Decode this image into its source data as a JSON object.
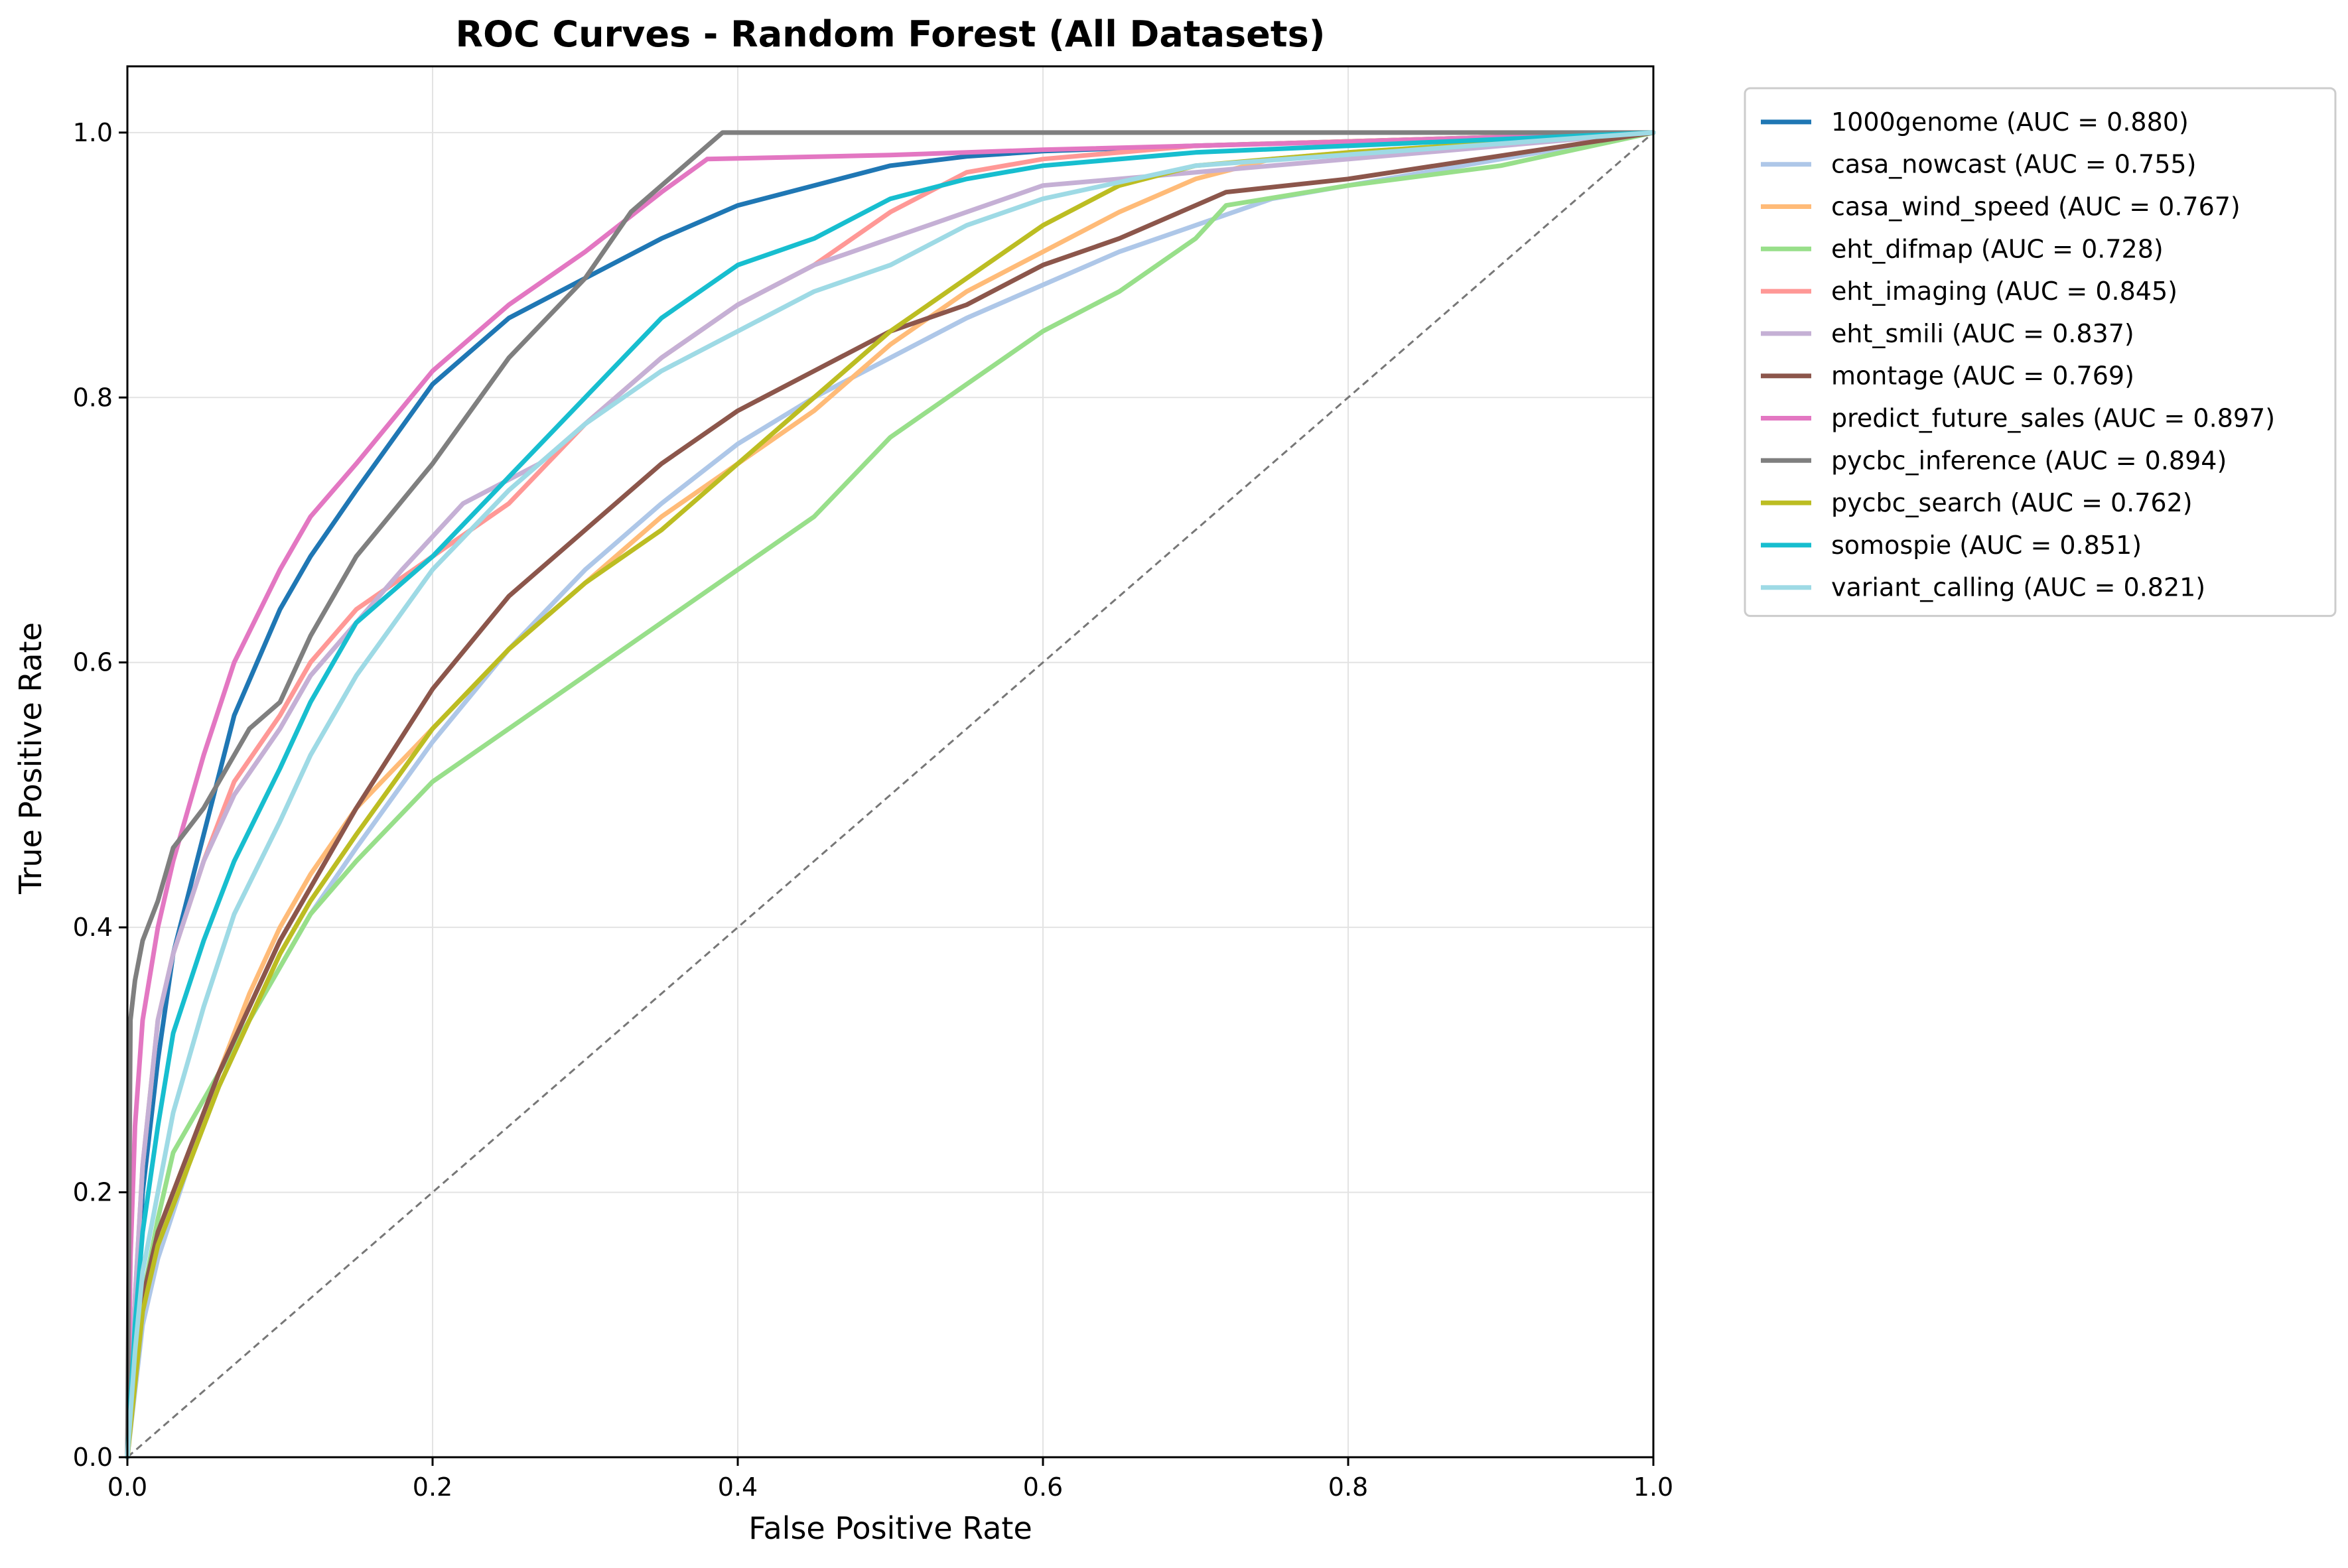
{
  "chart_data": {
    "type": "line",
    "title": "ROC Curves - Random Forest (All Datasets)",
    "xlabel": "False Positive Rate",
    "ylabel": "True Positive Rate",
    "xlim": [
      0,
      1
    ],
    "ylim": [
      0,
      1.05
    ],
    "xticks": [
      0.0,
      0.2,
      0.4,
      0.6,
      0.8,
      1.0
    ],
    "xtick_labels": [
      "0.0",
      "0.2",
      "0.4",
      "0.6",
      "0.8",
      "1.0"
    ],
    "yticks": [
      0.0,
      0.2,
      0.4,
      0.6,
      0.8,
      1.0
    ],
    "ytick_labels": [
      "0.0",
      "0.2",
      "0.4",
      "0.6",
      "0.8",
      "1.0"
    ],
    "grid": true,
    "legend_position": "outside-right-top",
    "reference_line": {
      "x": [
        0,
        1
      ],
      "y": [
        0,
        1
      ],
      "color": "#777777",
      "style": "dashed"
    },
    "series": [
      {
        "name": "1000genome (AUC = 0.880)",
        "color": "#1f77b4",
        "x": [
          0,
          0.005,
          0.01,
          0.02,
          0.03,
          0.05,
          0.07,
          0.1,
          0.12,
          0.15,
          0.2,
          0.25,
          0.3,
          0.35,
          0.4,
          0.45,
          0.5,
          0.55,
          0.6,
          0.7,
          1.0
        ],
        "y": [
          0,
          0.1,
          0.2,
          0.3,
          0.38,
          0.47,
          0.56,
          0.64,
          0.68,
          0.73,
          0.81,
          0.86,
          0.89,
          0.92,
          0.945,
          0.96,
          0.975,
          0.982,
          0.986,
          0.99,
          1.0
        ]
      },
      {
        "name": "casa_nowcast (AUC = 0.755)",
        "color": "#aec7e8",
        "x": [
          0,
          0.01,
          0.02,
          0.04,
          0.06,
          0.08,
          0.1,
          0.12,
          0.15,
          0.2,
          0.25,
          0.3,
          0.35,
          0.4,
          0.45,
          0.5,
          0.55,
          0.6,
          0.65,
          0.7,
          0.75,
          0.8,
          1.0
        ],
        "y": [
          0,
          0.1,
          0.15,
          0.22,
          0.28,
          0.33,
          0.37,
          0.41,
          0.46,
          0.54,
          0.61,
          0.67,
          0.72,
          0.765,
          0.8,
          0.83,
          0.86,
          0.885,
          0.91,
          0.93,
          0.95,
          0.96,
          1.0
        ]
      },
      {
        "name": "casa_wind_speed (AUC = 0.767)",
        "color": "#ffbb78",
        "x": [
          0,
          0.01,
          0.02,
          0.04,
          0.06,
          0.08,
          0.1,
          0.12,
          0.15,
          0.2,
          0.25,
          0.3,
          0.35,
          0.4,
          0.45,
          0.5,
          0.55,
          0.6,
          0.65,
          0.7,
          0.75,
          0.8,
          1.0
        ],
        "y": [
          0,
          0.12,
          0.17,
          0.23,
          0.29,
          0.35,
          0.4,
          0.44,
          0.49,
          0.55,
          0.61,
          0.66,
          0.71,
          0.75,
          0.79,
          0.84,
          0.88,
          0.91,
          0.94,
          0.965,
          0.98,
          0.985,
          1.0
        ]
      },
      {
        "name": "eht_difmap (AUC = 0.728)",
        "color": "#98df8a",
        "x": [
          0,
          0.01,
          0.02,
          0.03,
          0.05,
          0.07,
          0.1,
          0.12,
          0.15,
          0.2,
          0.25,
          0.3,
          0.35,
          0.4,
          0.45,
          0.5,
          0.55,
          0.6,
          0.65,
          0.7,
          0.72,
          0.8,
          0.9,
          1.0
        ],
        "y": [
          0,
          0.12,
          0.18,
          0.23,
          0.27,
          0.31,
          0.37,
          0.41,
          0.45,
          0.51,
          0.55,
          0.59,
          0.63,
          0.67,
          0.71,
          0.77,
          0.81,
          0.85,
          0.88,
          0.92,
          0.945,
          0.96,
          0.975,
          1.0
        ]
      },
      {
        "name": "eht_imaging (AUC = 0.845)",
        "color": "#ff9896",
        "x": [
          0,
          0.005,
          0.01,
          0.02,
          0.03,
          0.05,
          0.07,
          0.1,
          0.12,
          0.15,
          0.2,
          0.25,
          0.3,
          0.35,
          0.4,
          0.45,
          0.5,
          0.55,
          0.6,
          0.7,
          1.0
        ],
        "y": [
          0,
          0.12,
          0.22,
          0.33,
          0.38,
          0.45,
          0.51,
          0.56,
          0.6,
          0.64,
          0.68,
          0.72,
          0.78,
          0.83,
          0.87,
          0.9,
          0.94,
          0.97,
          0.98,
          0.99,
          1.0
        ]
      },
      {
        "name": "eht_smili (AUC = 0.837)",
        "color": "#c5b0d5",
        "x": [
          0,
          0.005,
          0.01,
          0.02,
          0.03,
          0.05,
          0.07,
          0.1,
          0.12,
          0.15,
          0.18,
          0.22,
          0.27,
          0.3,
          0.35,
          0.4,
          0.45,
          0.5,
          0.55,
          0.6,
          0.7,
          1.0
        ],
        "y": [
          0,
          0.12,
          0.22,
          0.33,
          0.38,
          0.45,
          0.5,
          0.55,
          0.59,
          0.63,
          0.67,
          0.72,
          0.75,
          0.78,
          0.83,
          0.87,
          0.9,
          0.92,
          0.94,
          0.96,
          0.97,
          1.0
        ]
      },
      {
        "name": "montage (AUC = 0.769)",
        "color": "#8c564b",
        "x": [
          0,
          0.01,
          0.02,
          0.04,
          0.06,
          0.08,
          0.1,
          0.12,
          0.15,
          0.2,
          0.25,
          0.3,
          0.35,
          0.4,
          0.45,
          0.5,
          0.55,
          0.6,
          0.65,
          0.7,
          0.72,
          0.8,
          1.0
        ],
        "y": [
          0,
          0.12,
          0.17,
          0.23,
          0.29,
          0.34,
          0.39,
          0.43,
          0.49,
          0.58,
          0.65,
          0.7,
          0.75,
          0.79,
          0.82,
          0.85,
          0.87,
          0.9,
          0.92,
          0.945,
          0.955,
          0.965,
          1.0
        ]
      },
      {
        "name": "predict_future_sales (AUC = 0.897)",
        "color": "#e377c2",
        "x": [
          0,
          0.002,
          0.005,
          0.01,
          0.02,
          0.03,
          0.05,
          0.07,
          0.1,
          0.12,
          0.15,
          0.2,
          0.25,
          0.3,
          0.35,
          0.38,
          0.5,
          0.6,
          0.8,
          1.0
        ],
        "y": [
          0,
          0.15,
          0.25,
          0.33,
          0.4,
          0.45,
          0.53,
          0.6,
          0.67,
          0.71,
          0.75,
          0.82,
          0.87,
          0.91,
          0.955,
          0.98,
          0.983,
          0.987,
          0.993,
          1.0
        ]
      },
      {
        "name": "pycbc_inference (AUC = 0.894)",
        "color": "#7f7f7f",
        "x": [
          0,
          0.002,
          0.005,
          0.01,
          0.02,
          0.03,
          0.05,
          0.08,
          0.1,
          0.12,
          0.15,
          0.2,
          0.25,
          0.3,
          0.33,
          0.36,
          0.39,
          0.6,
          0.8,
          1.0
        ],
        "y": [
          0,
          0.33,
          0.36,
          0.39,
          0.42,
          0.46,
          0.49,
          0.55,
          0.57,
          0.62,
          0.68,
          0.75,
          0.83,
          0.89,
          0.94,
          0.97,
          1.0,
          1.0,
          1.0,
          1.0
        ]
      },
      {
        "name": "pycbc_search (AUC = 0.762)",
        "color": "#bcbd22",
        "x": [
          0,
          0.01,
          0.02,
          0.04,
          0.06,
          0.08,
          0.1,
          0.12,
          0.15,
          0.2,
          0.25,
          0.3,
          0.35,
          0.4,
          0.45,
          0.5,
          0.55,
          0.6,
          0.65,
          0.7,
          0.8,
          1.0
        ],
        "y": [
          0,
          0.11,
          0.16,
          0.22,
          0.28,
          0.33,
          0.38,
          0.42,
          0.47,
          0.55,
          0.61,
          0.66,
          0.7,
          0.75,
          0.8,
          0.85,
          0.89,
          0.93,
          0.96,
          0.975,
          0.985,
          1.0
        ]
      },
      {
        "name": "somospie (AUC = 0.851)",
        "color": "#17becf",
        "x": [
          0,
          0.005,
          0.01,
          0.02,
          0.03,
          0.05,
          0.07,
          0.1,
          0.12,
          0.15,
          0.2,
          0.25,
          0.3,
          0.35,
          0.4,
          0.45,
          0.5,
          0.55,
          0.6,
          0.7,
          1.0
        ],
        "y": [
          0,
          0.1,
          0.17,
          0.25,
          0.32,
          0.39,
          0.45,
          0.52,
          0.57,
          0.63,
          0.68,
          0.74,
          0.8,
          0.86,
          0.9,
          0.92,
          0.95,
          0.965,
          0.975,
          0.985,
          1.0
        ]
      },
      {
        "name": "variant_calling (AUC = 0.821)",
        "color": "#9edae5",
        "x": [
          0,
          0.005,
          0.01,
          0.02,
          0.03,
          0.05,
          0.07,
          0.1,
          0.12,
          0.15,
          0.2,
          0.25,
          0.3,
          0.35,
          0.4,
          0.45,
          0.5,
          0.55,
          0.6,
          0.7,
          1.0
        ],
        "y": [
          0,
          0.08,
          0.14,
          0.2,
          0.26,
          0.34,
          0.41,
          0.48,
          0.53,
          0.59,
          0.67,
          0.73,
          0.78,
          0.82,
          0.85,
          0.88,
          0.9,
          0.93,
          0.95,
          0.975,
          1.0
        ]
      }
    ]
  }
}
